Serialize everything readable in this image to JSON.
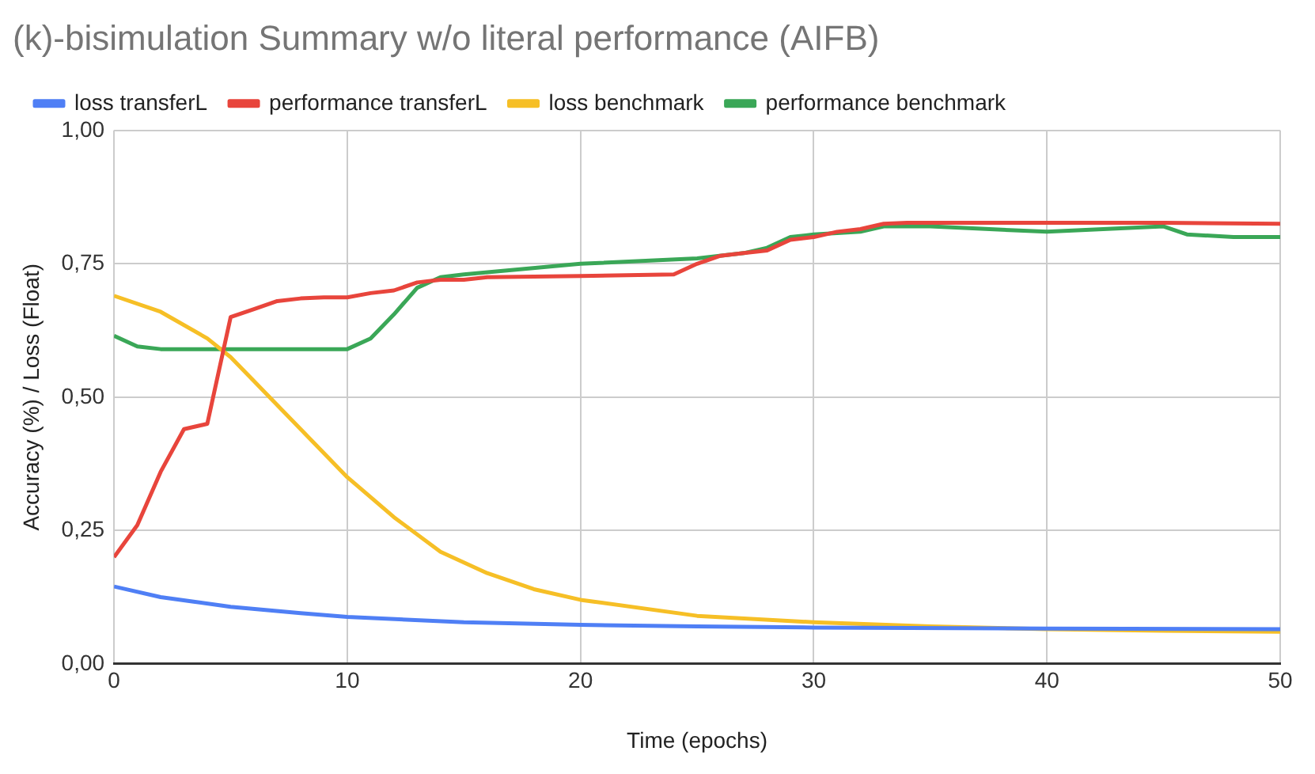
{
  "chart_data": {
    "type": "line",
    "title": "(k)-bisimulation Summary w/o literal performance (AIFB)",
    "xlabel": "Time (epochs)",
    "ylabel": "Accuracy (%) / Loss (Float)",
    "legend": "top",
    "grid": true,
    "marker": "none",
    "line_style": "solid",
    "xlim": [
      0,
      50
    ],
    "xticks": [
      0,
      10,
      20,
      30,
      40,
      50
    ],
    "ylim": [
      0,
      1
    ],
    "yticks": [
      {
        "value": 0,
        "label": "0,00"
      },
      {
        "value": 0.25,
        "label": "0,25"
      },
      {
        "value": 0.5,
        "label": "0,50"
      },
      {
        "value": 0.75,
        "label": "0,75"
      },
      {
        "value": 1,
        "label": "1,00"
      }
    ],
    "series": [
      {
        "name": "loss transferL",
        "color": "#4f7ff5",
        "x": [
          0,
          2,
          5,
          8,
          10,
          15,
          20,
          25,
          30,
          40,
          50
        ],
        "values": [
          0.145,
          0.125,
          0.107,
          0.095,
          0.088,
          0.078,
          0.073,
          0.07,
          0.068,
          0.066,
          0.065
        ]
      },
      {
        "name": "performance transferL",
        "color": "#e8453c",
        "x": [
          0,
          1,
          2,
          3,
          4,
          5,
          6,
          7,
          8,
          9,
          10,
          11,
          12,
          13,
          14,
          15,
          16,
          20,
          24,
          25,
          26,
          27,
          28,
          29,
          30,
          31,
          32,
          33,
          34,
          40,
          45,
          50
        ],
        "values": [
          0.2,
          0.26,
          0.36,
          0.44,
          0.45,
          0.65,
          0.665,
          0.68,
          0.685,
          0.687,
          0.687,
          0.695,
          0.7,
          0.715,
          0.72,
          0.72,
          0.725,
          0.727,
          0.73,
          0.75,
          0.765,
          0.77,
          0.775,
          0.795,
          0.8,
          0.81,
          0.815,
          0.825,
          0.827,
          0.827,
          0.827,
          0.825
        ]
      },
      {
        "name": "loss benchmark",
        "color": "#f6bf26",
        "x": [
          0,
          2,
          4,
          5,
          6,
          8,
          10,
          12,
          14,
          16,
          18,
          20,
          25,
          30,
          35,
          40,
          45,
          50
        ],
        "values": [
          0.69,
          0.66,
          0.61,
          0.575,
          0.53,
          0.44,
          0.35,
          0.275,
          0.21,
          0.17,
          0.14,
          0.12,
          0.09,
          0.078,
          0.07,
          0.065,
          0.062,
          0.06
        ]
      },
      {
        "name": "performance benchmark",
        "color": "#3aa757",
        "x": [
          0,
          1,
          2,
          10,
          11,
          12,
          13,
          14,
          15,
          20,
          25,
          27,
          28,
          29,
          30,
          32,
          33,
          35,
          40,
          45,
          46,
          48,
          50
        ],
        "values": [
          0.615,
          0.595,
          0.59,
          0.59,
          0.61,
          0.655,
          0.705,
          0.725,
          0.73,
          0.75,
          0.76,
          0.77,
          0.78,
          0.8,
          0.805,
          0.81,
          0.82,
          0.82,
          0.81,
          0.82,
          0.805,
          0.8,
          0.8
        ]
      }
    ]
  }
}
